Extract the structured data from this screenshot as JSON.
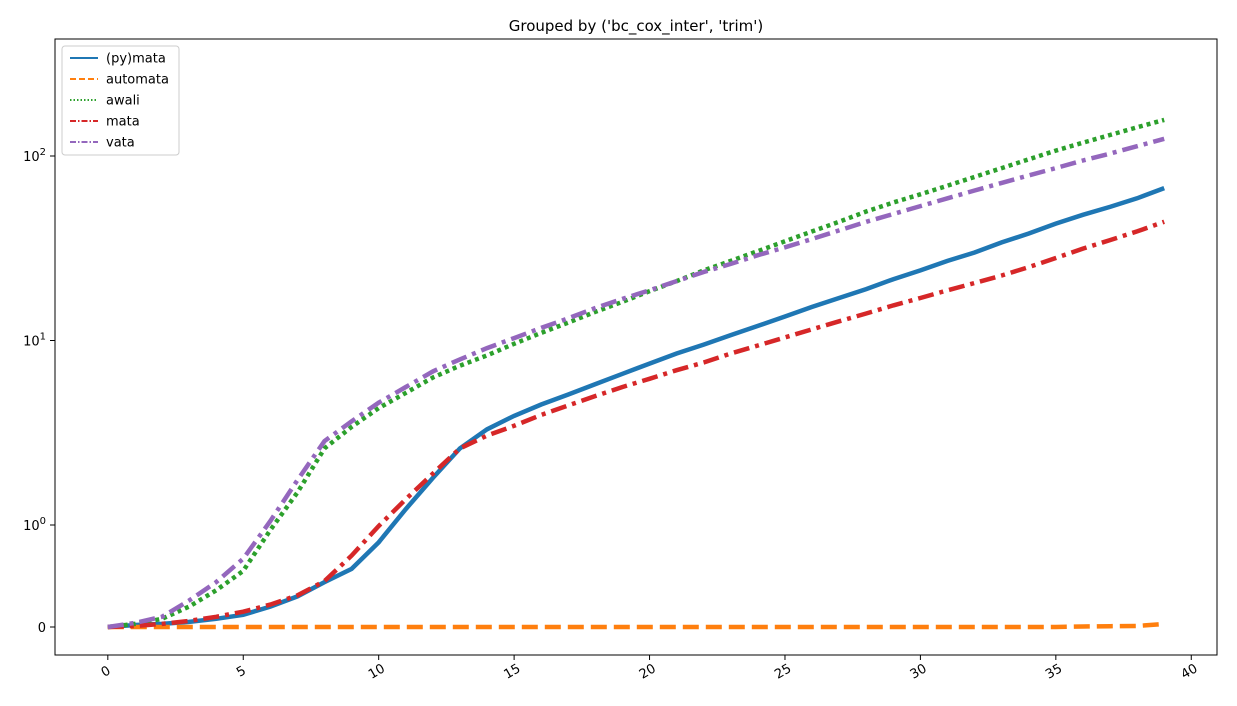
{
  "chart_data": {
    "type": "line",
    "title": "Grouped by ('bc_cox_inter', 'trim')",
    "xlabel": "",
    "ylabel": "",
    "xlim": [
      -1.95,
      40.95
    ],
    "y_scale": "symlog",
    "x_ticks": [
      0,
      5,
      10,
      15,
      20,
      25,
      30,
      35,
      40
    ],
    "y_ticks": [
      {
        "value": 0,
        "label": "0"
      },
      {
        "value": 1,
        "label": "10",
        "exp": "0"
      },
      {
        "value": 10,
        "label": "10",
        "exp": "1"
      },
      {
        "value": 100,
        "label": "10",
        "exp": "2"
      }
    ],
    "grid": false,
    "legend_position": "top-left",
    "x": [
      0,
      1,
      2,
      3,
      4,
      5,
      6,
      7,
      8,
      9,
      10,
      11,
      12,
      13,
      14,
      15,
      16,
      17,
      18,
      19,
      20,
      21,
      22,
      23,
      24,
      25,
      26,
      27,
      28,
      29,
      30,
      31,
      32,
      33,
      34,
      35,
      36,
      37,
      38,
      39
    ],
    "series": [
      {
        "name": "(py)mata",
        "color": "#1f77b4",
        "dash": "solid",
        "values": [
          0.0,
          0.02,
          0.03,
          0.05,
          0.08,
          0.12,
          0.2,
          0.3,
          0.44,
          0.57,
          0.83,
          1.22,
          1.8,
          2.6,
          3.3,
          3.9,
          4.5,
          5.1,
          5.8,
          6.6,
          7.5,
          8.5,
          9.5,
          10.7,
          12.0,
          13.5,
          15.2,
          17.0,
          19.0,
          21.5,
          24.0,
          27.0,
          30.0,
          34.0,
          38.0,
          43.0,
          48.0,
          53.0,
          59.0,
          67.0
        ]
      },
      {
        "name": "automata",
        "color": "#ff7f0e",
        "dash": "dashed",
        "values": [
          0.0,
          0.0,
          0.0,
          0.0,
          0.0,
          0.0,
          0.0,
          0.0,
          0.0,
          0.0,
          0.0,
          0.0,
          0.0,
          0.0,
          0.0,
          0.0,
          0.0,
          0.0,
          0.0,
          0.0,
          0.0,
          0.0,
          0.0,
          0.0,
          0.0,
          0.0,
          0.0,
          0.0,
          0.0,
          0.0,
          0.0,
          0.0,
          0.0,
          0.0,
          0.0,
          0.0,
          0.005,
          0.008,
          0.01,
          0.03
        ]
      },
      {
        "name": "awali",
        "color": "#2ca02c",
        "dash": "dotted",
        "values": [
          0.0,
          0.03,
          0.08,
          0.2,
          0.36,
          0.55,
          0.95,
          1.5,
          2.6,
          3.4,
          4.3,
          5.2,
          6.3,
          7.3,
          8.3,
          9.6,
          11.0,
          12.5,
          14.3,
          16.2,
          18.5,
          21.0,
          24.0,
          27.0,
          30.5,
          34.5,
          39.0,
          44.0,
          50.0,
          56.0,
          62.0,
          69.0,
          77.0,
          86.0,
          96.0,
          107.0,
          118.0,
          130.0,
          143.0,
          157.0
        ]
      },
      {
        "name": "mata",
        "color": "#d62728",
        "dash": "dashdot",
        "values": [
          0.0,
          0.01,
          0.03,
          0.06,
          0.1,
          0.15,
          0.22,
          0.31,
          0.45,
          0.7,
          0.99,
          1.38,
          1.9,
          2.6,
          3.05,
          3.45,
          3.95,
          4.45,
          5.0,
          5.6,
          6.2,
          6.9,
          7.6,
          8.5,
          9.4,
          10.4,
          11.5,
          12.7,
          14.0,
          15.5,
          17.0,
          18.7,
          20.5,
          22.5,
          25.0,
          28.0,
          31.5,
          35.0,
          39.0,
          44.0
        ]
      },
      {
        "name": "vata",
        "color": "#9467bd",
        "dash": "dashdot",
        "values": [
          0.0,
          0.04,
          0.1,
          0.26,
          0.44,
          0.67,
          1.05,
          1.75,
          2.85,
          3.65,
          4.6,
          5.6,
          6.8,
          7.9,
          9.1,
          10.3,
          11.7,
          13.2,
          15.0,
          16.8,
          18.7,
          21.0,
          23.5,
          26.0,
          29.0,
          32.0,
          35.5,
          39.5,
          44.0,
          48.5,
          53.5,
          59.0,
          65.0,
          71.5,
          78.5,
          86.0,
          94.5,
          103.0,
          113.0,
          124.0
        ]
      }
    ]
  }
}
